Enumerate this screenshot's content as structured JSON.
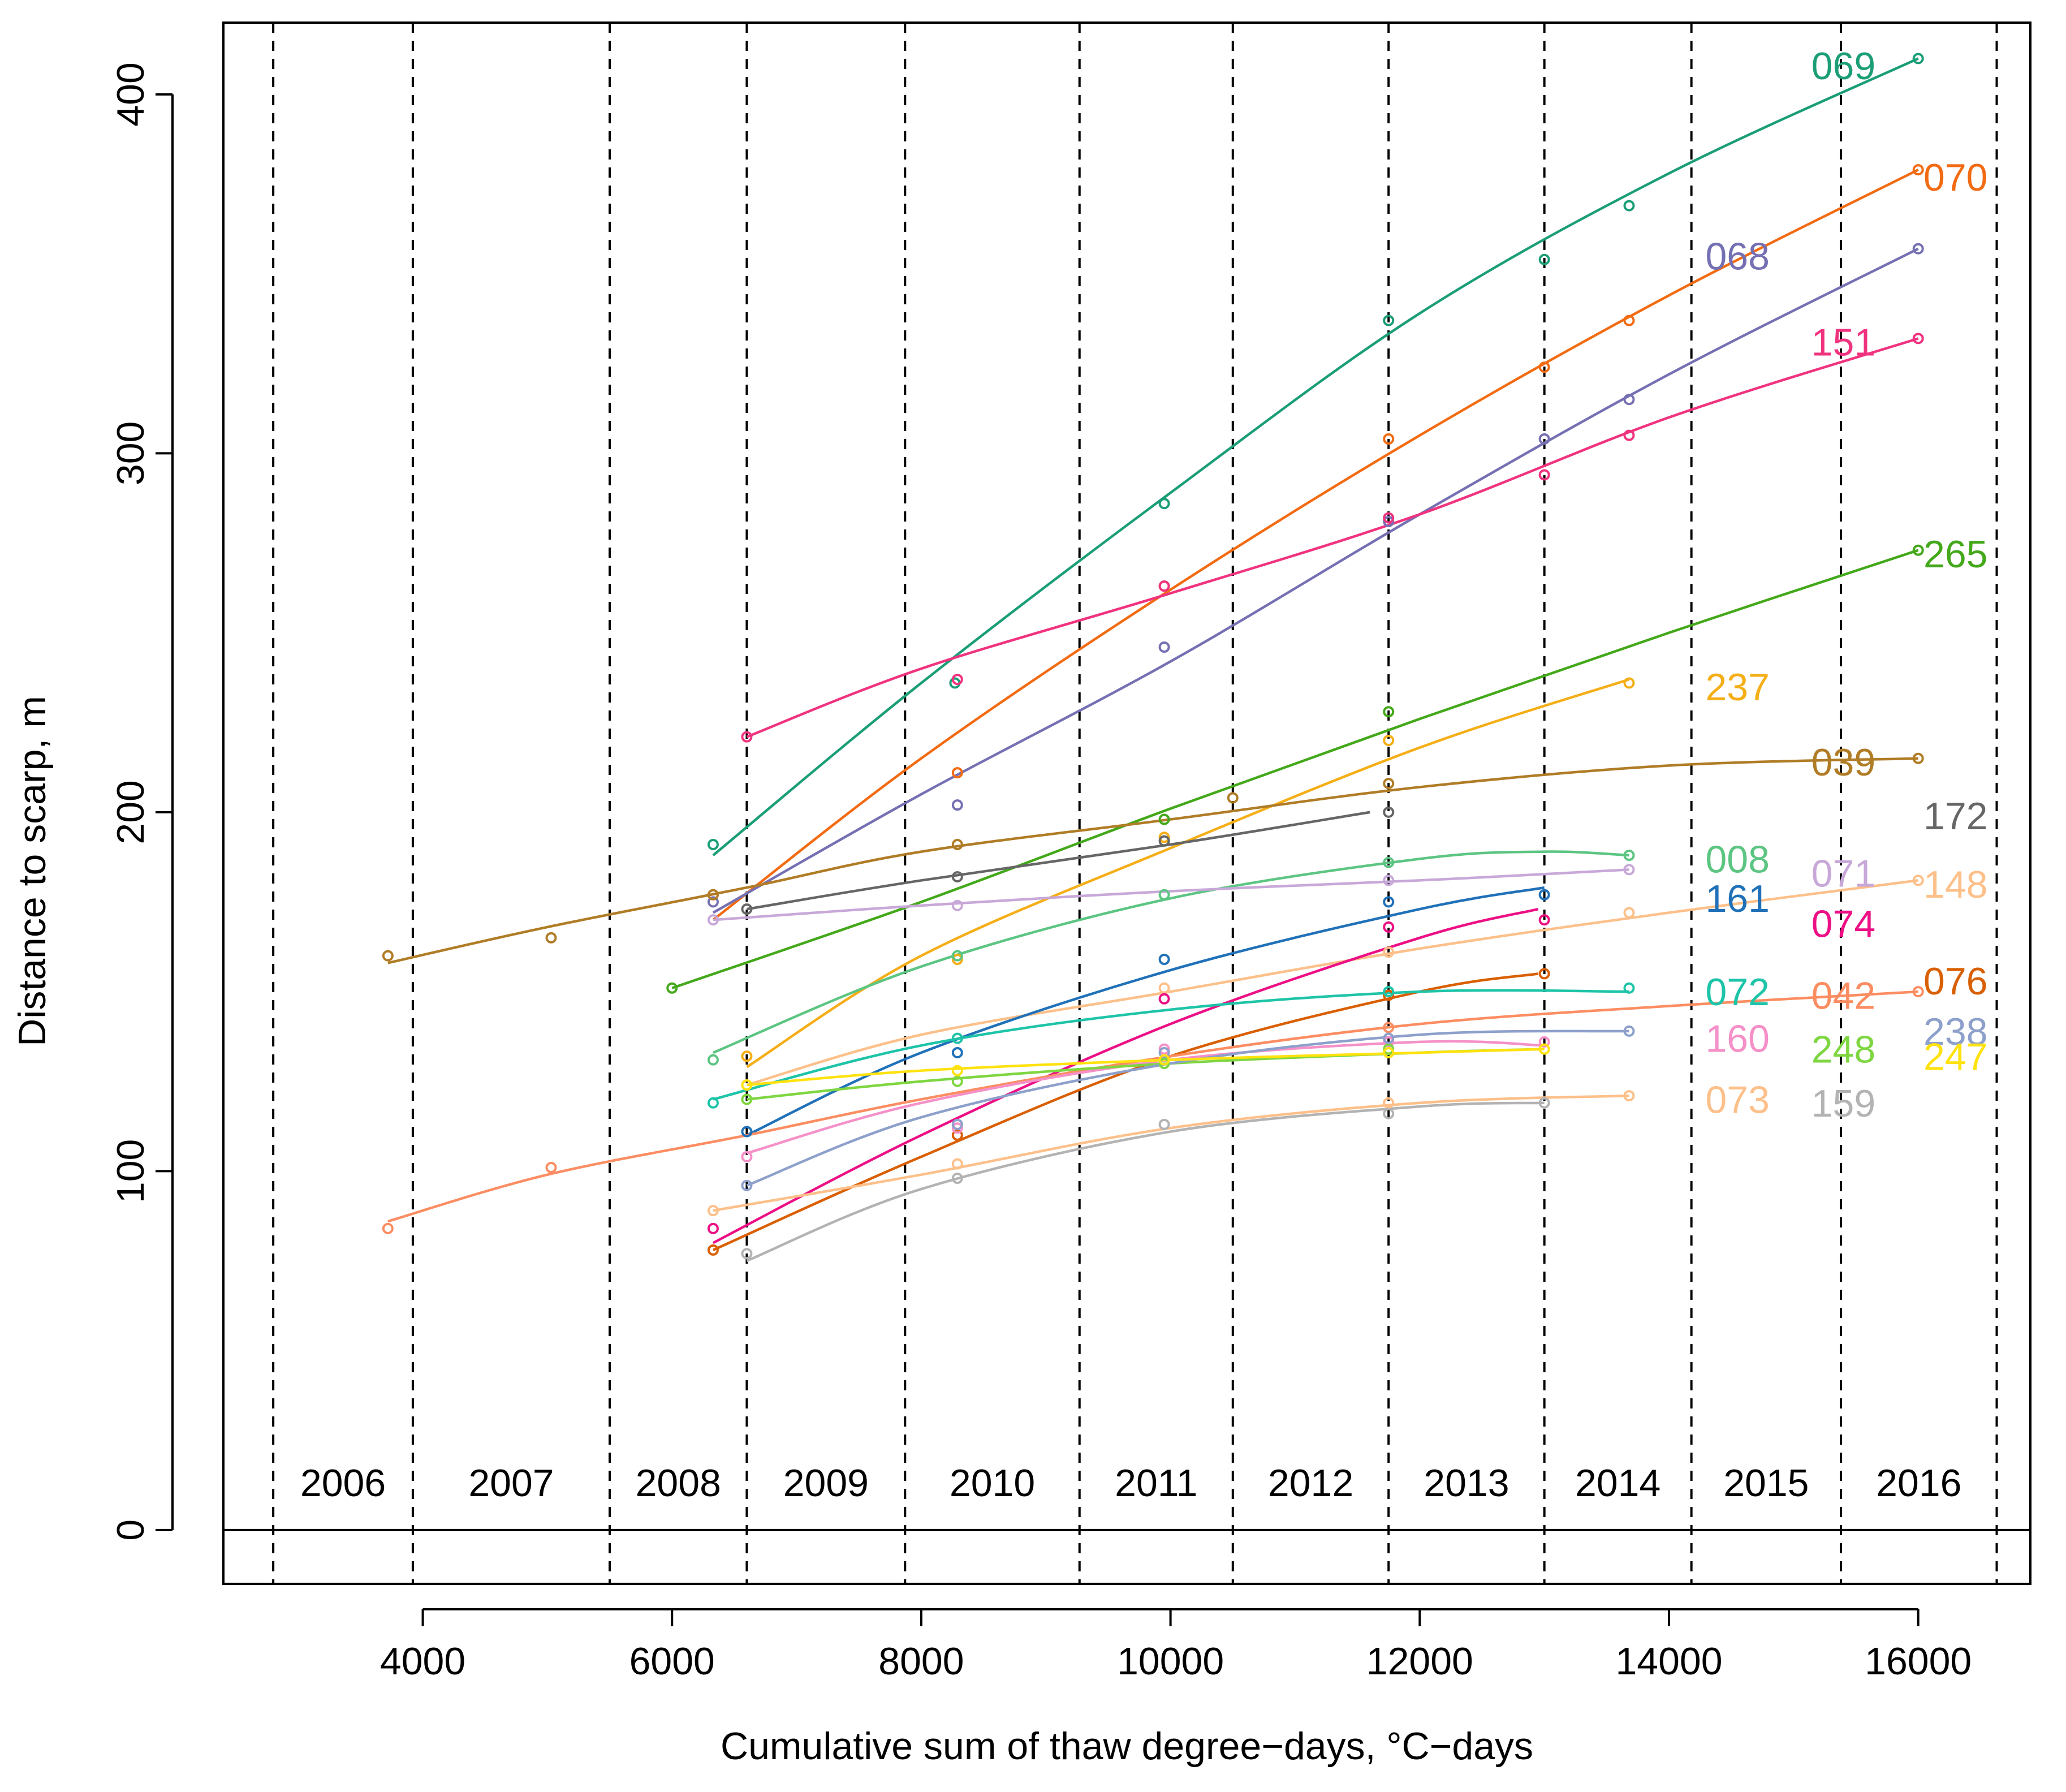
{
  "chart_data": {
    "type": "line",
    "title": "",
    "xlabel": "Cumulative sum of thaw degree−days, °C−days",
    "ylabel": "Distance to scarp, m",
    "xlim": [
      2400,
      16900
    ],
    "ylim": [
      -15,
      420
    ],
    "x_ticks": [
      4000,
      6000,
      8000,
      10000,
      12000,
      14000,
      16000
    ],
    "x_tick_labels": [
      "4000",
      "6000",
      "8000",
      "10000",
      "12000",
      "14000",
      "16000"
    ],
    "y_ticks": [
      0,
      100,
      200,
      300,
      400
    ],
    "y_tick_labels": [
      "0",
      "100",
      "200",
      "300",
      "400"
    ],
    "zero_line": true,
    "year_boundaries": [
      2800,
      3920,
      5500,
      6600,
      7870,
      9270,
      10500,
      11750,
      13000,
      14180,
      15380,
      16630
    ],
    "year_labels": [
      {
        "label": "2006",
        "x": 3360
      },
      {
        "label": "2007",
        "x": 4710
      },
      {
        "label": "2008",
        "x": 6050
      },
      {
        "label": "2009",
        "x": 7235
      },
      {
        "label": "2010",
        "x": 8570
      },
      {
        "label": "2011",
        "x": 9885
      },
      {
        "label": "2012",
        "x": 11125
      },
      {
        "label": "2013",
        "x": 12375
      },
      {
        "label": "2014",
        "x": 13590
      },
      {
        "label": "2015",
        "x": 14780
      },
      {
        "label": "2016",
        "x": 16005
      }
    ],
    "series": [
      {
        "name": "069",
        "color": "#1B9E77",
        "label_pos": [
          15400,
          408
        ],
        "points": [
          [
            6330,
            191
          ],
          [
            8270,
            236
          ],
          [
            9950,
            286
          ],
          [
            11750,
            337
          ],
          [
            13000,
            354
          ],
          [
            13680,
            369
          ],
          [
            16000,
            410
          ]
        ],
        "curve": [
          [
            6330,
            188
          ],
          [
            8000,
            236
          ],
          [
            10000,
            289
          ],
          [
            12000,
            339
          ],
          [
            14000,
            378
          ],
          [
            16000,
            410
          ]
        ]
      },
      {
        "name": "070",
        "color": "#F26B12",
        "label_pos": [
          16300,
          377
        ],
        "points": [
          [
            6330,
            177
          ],
          [
            8290,
            211
          ],
          [
            9950,
            263
          ],
          [
            11750,
            304
          ],
          [
            13000,
            324
          ],
          [
            13680,
            337
          ],
          [
            16000,
            379
          ]
        ],
        "curve": [
          [
            6330,
            170
          ],
          [
            8000,
            215
          ],
          [
            10000,
            262
          ],
          [
            12000,
            305
          ],
          [
            14000,
            344
          ],
          [
            16000,
            379
          ]
        ]
      },
      {
        "name": "068",
        "color": "#7570B3",
        "label_pos": [
          14550,
          355
        ],
        "points": [
          [
            6330,
            175
          ],
          [
            8290,
            202
          ],
          [
            9950,
            246
          ],
          [
            11750,
            281
          ],
          [
            13000,
            304
          ],
          [
            13680,
            315
          ],
          [
            16000,
            357
          ]
        ],
        "curve": [
          [
            6330,
            172
          ],
          [
            8000,
            205
          ],
          [
            10000,
            242
          ],
          [
            12000,
            283
          ],
          [
            14000,
            322
          ],
          [
            16000,
            357
          ]
        ]
      },
      {
        "name": "151",
        "color": "#F0337F",
        "label_pos": [
          15400,
          331
        ],
        "points": [
          [
            6600,
            221
          ],
          [
            8290,
            237
          ],
          [
            9950,
            263
          ],
          [
            11750,
            282
          ],
          [
            13000,
            294
          ],
          [
            13680,
            305
          ],
          [
            16000,
            332
          ]
        ],
        "curve": [
          [
            6600,
            221
          ],
          [
            8000,
            240
          ],
          [
            10000,
            261
          ],
          [
            12000,
            283
          ],
          [
            14000,
            310
          ],
          [
            16000,
            332
          ]
        ]
      },
      {
        "name": "265",
        "color": "#43A81A",
        "label_pos": [
          16300,
          272
        ],
        "points": [
          [
            6000,
            151
          ],
          [
            9950,
            198
          ],
          [
            11750,
            228
          ],
          [
            16000,
            273
          ]
        ],
        "curve": [
          [
            6000,
            151
          ],
          [
            8000,
            175
          ],
          [
            10000,
            201
          ],
          [
            12000,
            226
          ],
          [
            14000,
            250
          ],
          [
            16000,
            273
          ]
        ]
      },
      {
        "name": "237",
        "color": "#F5AE17",
        "label_pos": [
          14550,
          235
        ],
        "points": [
          [
            6600,
            132
          ],
          [
            8290,
            159
          ],
          [
            9950,
            193
          ],
          [
            11750,
            220
          ],
          [
            13680,
            236
          ]
        ],
        "curve": [
          [
            6600,
            129
          ],
          [
            8000,
            160
          ],
          [
            10000,
            190
          ],
          [
            12000,
            218
          ],
          [
            13680,
            237
          ]
        ]
      },
      {
        "name": "039",
        "color": "#B07C26",
        "label_pos": [
          15400,
          214
        ],
        "points": [
          [
            3720,
            160
          ],
          [
            5030,
            165
          ],
          [
            6330,
            177
          ],
          [
            8290,
            191
          ],
          [
            10500,
            204
          ],
          [
            11750,
            208
          ],
          [
            16000,
            215
          ]
        ],
        "curve": [
          [
            3720,
            158
          ],
          [
            5000,
            168
          ],
          [
            6600,
            179
          ],
          [
            8000,
            189
          ],
          [
            10000,
            198
          ],
          [
            12000,
            207
          ],
          [
            14000,
            213
          ],
          [
            16000,
            215
          ]
        ]
      },
      {
        "name": "172",
        "color": "#666666",
        "label_pos": [
          16300,
          199
        ],
        "points": [
          [
            6600,
            173
          ],
          [
            8290,
            182
          ],
          [
            9950,
            192
          ],
          [
            11750,
            200
          ]
        ],
        "curve": [
          [
            6600,
            173
          ],
          [
            8000,
            181
          ],
          [
            10000,
            191
          ],
          [
            11600,
            200
          ]
        ]
      },
      {
        "name": "008",
        "color": "#5CC582",
        "label_pos": [
          14550,
          187
        ],
        "points": [
          [
            6330,
            131
          ],
          [
            8290,
            160
          ],
          [
            9950,
            177
          ],
          [
            11750,
            186
          ],
          [
            13680,
            188
          ]
        ],
        "curve": [
          [
            6330,
            133
          ],
          [
            8000,
            157
          ],
          [
            10000,
            176
          ],
          [
            12000,
            187
          ],
          [
            13000,
            189
          ],
          [
            13680,
            188
          ]
        ]
      },
      {
        "name": "071",
        "color": "#C8A8D8",
        "label_pos": [
          15400,
          183
        ],
        "points": [
          [
            6330,
            170
          ],
          [
            8290,
            174
          ],
          [
            11750,
            181
          ],
          [
            13680,
            184
          ]
        ],
        "curve": [
          [
            6330,
            170
          ],
          [
            8000,
            174
          ],
          [
            10000,
            178
          ],
          [
            12000,
            181
          ],
          [
            13680,
            184
          ]
        ]
      },
      {
        "name": "148",
        "color": "#FDC08A",
        "label_pos": [
          16300,
          180
        ],
        "points": [
          [
            6600,
            124
          ],
          [
            9950,
            151
          ],
          [
            11750,
            161
          ],
          [
            13680,
            172
          ],
          [
            16000,
            181
          ]
        ],
        "curve": [
          [
            6600,
            124
          ],
          [
            8000,
            138
          ],
          [
            10000,
            150
          ],
          [
            12000,
            162
          ],
          [
            14000,
            172
          ],
          [
            16000,
            181
          ]
        ]
      },
      {
        "name": "161",
        "color": "#2071B8",
        "label_pos": [
          14550,
          176
        ],
        "points": [
          [
            6600,
            111
          ],
          [
            8290,
            133
          ],
          [
            9950,
            159
          ],
          [
            11750,
            175
          ],
          [
            13000,
            177
          ]
        ],
        "curve": [
          [
            6600,
            110
          ],
          [
            8000,
            133
          ],
          [
            10000,
            156
          ],
          [
            12000,
            173
          ],
          [
            13000,
            179
          ]
        ]
      },
      {
        "name": "074",
        "color": "#EC0F85",
        "label_pos": [
          15400,
          169
        ],
        "points": [
          [
            6330,
            84
          ],
          [
            9950,
            148
          ],
          [
            11750,
            168
          ],
          [
            13000,
            170
          ]
        ],
        "curve": [
          [
            6330,
            80
          ],
          [
            8000,
            110
          ],
          [
            10000,
            141
          ],
          [
            12000,
            165
          ],
          [
            12950,
            173
          ]
        ]
      },
      {
        "name": "076",
        "color": "#D95F02",
        "label_pos": [
          16300,
          153
        ],
        "points": [
          [
            6330,
            78
          ],
          [
            8290,
            110
          ],
          [
            11750,
            149
          ],
          [
            13000,
            155
          ]
        ],
        "curve": [
          [
            6330,
            78
          ],
          [
            8000,
            104
          ],
          [
            10000,
            132
          ],
          [
            12000,
            150
          ],
          [
            12950,
            155
          ]
        ]
      },
      {
        "name": "072",
        "color": "#1EC4A8",
        "label_pos": [
          14550,
          150
        ],
        "points": [
          [
            6330,
            119
          ],
          [
            8290,
            137
          ],
          [
            11750,
            150
          ],
          [
            13680,
            151
          ]
        ],
        "curve": [
          [
            6330,
            120
          ],
          [
            8000,
            135
          ],
          [
            10000,
            145
          ],
          [
            12000,
            150
          ],
          [
            13680,
            150
          ]
        ]
      },
      {
        "name": "042",
        "color": "#FC8D62",
        "label_pos": [
          15400,
          149
        ],
        "points": [
          [
            3720,
            84
          ],
          [
            5030,
            101
          ],
          [
            11750,
            140
          ],
          [
            16000,
            150
          ]
        ],
        "curve": [
          [
            3720,
            86
          ],
          [
            5000,
            99
          ],
          [
            6600,
            110
          ],
          [
            8000,
            120
          ],
          [
            10000,
            132
          ],
          [
            12000,
            141
          ],
          [
            14000,
            146
          ],
          [
            16000,
            150
          ]
        ]
      },
      {
        "name": "160",
        "color": "#F590C8",
        "label_pos": [
          14550,
          137
        ],
        "points": [
          [
            6600,
            104
          ],
          [
            8290,
            112
          ],
          [
            9950,
            134
          ],
          [
            11750,
            136
          ],
          [
            13000,
            136
          ]
        ],
        "curve": [
          [
            6600,
            105
          ],
          [
            8000,
            119
          ],
          [
            10000,
            131
          ],
          [
            12000,
            136
          ],
          [
            13000,
            135
          ]
        ]
      },
      {
        "name": "248",
        "color": "#7ED641",
        "label_pos": [
          15400,
          134
        ],
        "points": [
          [
            6600,
            120
          ],
          [
            8290,
            125
          ],
          [
            9950,
            130
          ],
          [
            11750,
            134
          ]
        ],
        "curve": [
          [
            6600,
            120
          ],
          [
            8000,
            125
          ],
          [
            10000,
            130
          ],
          [
            12000,
            133
          ],
          [
            13000,
            134
          ]
        ]
      },
      {
        "name": "238",
        "color": "#8DA0CB",
        "label_pos": [
          16300,
          139
        ],
        "points": [
          [
            6600,
            96
          ],
          [
            8290,
            113
          ],
          [
            9950,
            133
          ],
          [
            11750,
            137
          ],
          [
            13680,
            139
          ]
        ],
        "curve": [
          [
            6600,
            96
          ],
          [
            8000,
            115
          ],
          [
            10000,
            130
          ],
          [
            12000,
            138
          ],
          [
            13680,
            139
          ]
        ]
      },
      {
        "name": "247",
        "color": "#FFE20E",
        "label_pos": [
          16300,
          132
        ],
        "points": [
          [
            6600,
            124
          ],
          [
            8290,
            128
          ],
          [
            9950,
            131
          ],
          [
            11750,
            133
          ],
          [
            13000,
            134
          ]
        ],
        "curve": [
          [
            6600,
            124
          ],
          [
            8000,
            128
          ],
          [
            10000,
            131
          ],
          [
            12000,
            133
          ],
          [
            13000,
            134
          ]
        ]
      },
      {
        "name": "073",
        "color": "#FDC08A",
        "label_pos": [
          14550,
          120
        ],
        "points": [
          [
            6330,
            89
          ],
          [
            8290,
            102
          ],
          [
            11750,
            119
          ],
          [
            13680,
            121
          ]
        ],
        "curve": [
          [
            6330,
            89
          ],
          [
            8000,
            99
          ],
          [
            10000,
            112
          ],
          [
            12000,
            119
          ],
          [
            13680,
            121
          ]
        ]
      },
      {
        "name": "159",
        "color": "#B3B3B3",
        "label_pos": [
          15400,
          119
        ],
        "points": [
          [
            6600,
            77
          ],
          [
            8290,
            98
          ],
          [
            9950,
            113
          ],
          [
            11750,
            116
          ],
          [
            13000,
            119
          ]
        ],
        "curve": [
          [
            6600,
            75
          ],
          [
            8000,
            95
          ],
          [
            10000,
            111
          ],
          [
            12000,
            118
          ],
          [
            13000,
            119
          ]
        ]
      }
    ]
  }
}
